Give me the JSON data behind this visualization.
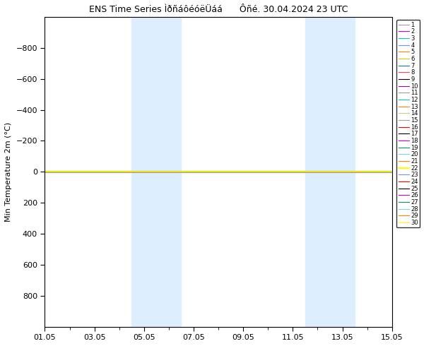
{
  "title": "ENS Time Series ÌðñáôéóëÜáá      Ôñé. 30.04.2024 23 UTC",
  "ylabel": "Min Temperature 2m (°C)",
  "ylim": [
    -1000,
    1000
  ],
  "yticks": [
    -800,
    -600,
    -400,
    -200,
    0,
    200,
    400,
    600,
    800
  ],
  "xtick_positions": [
    0,
    2,
    4,
    6,
    8,
    10,
    12,
    14
  ],
  "xtick_labels": [
    "01.05",
    "03.05",
    "05.05",
    "07.05",
    "09.05",
    "11.05",
    "13.05",
    "15.05"
  ],
  "total_days": 14,
  "shaded_regions": [
    {
      "start": 3.5,
      "end": 5.5
    },
    {
      "start": 10.5,
      "end": 12.5
    }
  ],
  "n_members": 30,
  "line_colors": [
    "#a0a0a0",
    "#cc00cc",
    "#00cccc",
    "#6699ff",
    "#ff8800",
    "#cccc00",
    "#008888",
    "#ff4444",
    "#000000",
    "#aa00aa",
    "#a0a0a0",
    "#00cccc",
    "#ff8800",
    "#cccc88",
    "#a0a0a0",
    "#ff0000",
    "#000000",
    "#cc00cc",
    "#009966",
    "#88ccee",
    "#ff8800",
    "#ffff00",
    "#6699ff",
    "#ff0000",
    "#000000",
    "#cc00cc",
    "#009966",
    "#88ccee",
    "#ff8800",
    "#ffff00"
  ],
  "highlight_member": 22,
  "line_value": 0,
  "background_color": "#ffffff",
  "shade_color": "#ddeeff",
  "invert_yaxis": true
}
